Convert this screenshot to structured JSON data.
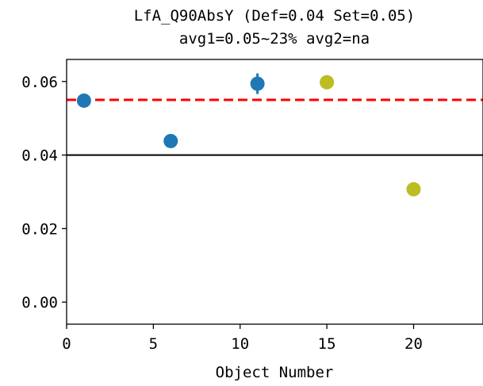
{
  "chart_data": {
    "type": "scatter",
    "title_lines": [
      "LfA_Q90AbsY (Def=0.04 Set=0.05)",
      "avg1=0.05~23% avg2=na"
    ],
    "xlabel": "Object Number",
    "ylabel": "",
    "xlim": [
      0,
      24
    ],
    "ylim": [
      -0.006,
      0.066
    ],
    "x_ticks": [
      0,
      5,
      10,
      15,
      20
    ],
    "x_tick_labels": [
      "0",
      "5",
      "10",
      "15",
      "20"
    ],
    "y_ticks": [
      0.0,
      0.02,
      0.04,
      0.06
    ],
    "y_tick_labels": [
      "0.00",
      "0.02",
      "0.04",
      "0.06"
    ],
    "grid": false,
    "reference_lines": [
      {
        "y": 0.055,
        "color": "#ff0000",
        "style": "dashed"
      },
      {
        "y": 0.04,
        "color": "#000000",
        "style": "solid"
      }
    ],
    "series": [
      {
        "color": "#1f77b4",
        "points": [
          {
            "x": 1,
            "y": 0.0548
          },
          {
            "x": 6,
            "y": 0.0438
          },
          {
            "x": 11,
            "y": 0.0594,
            "err": 0.0028
          }
        ]
      },
      {
        "color": "#bcbd22",
        "points": [
          {
            "x": 15,
            "y": 0.0598
          },
          {
            "x": 20,
            "y": 0.0307
          }
        ]
      }
    ]
  }
}
